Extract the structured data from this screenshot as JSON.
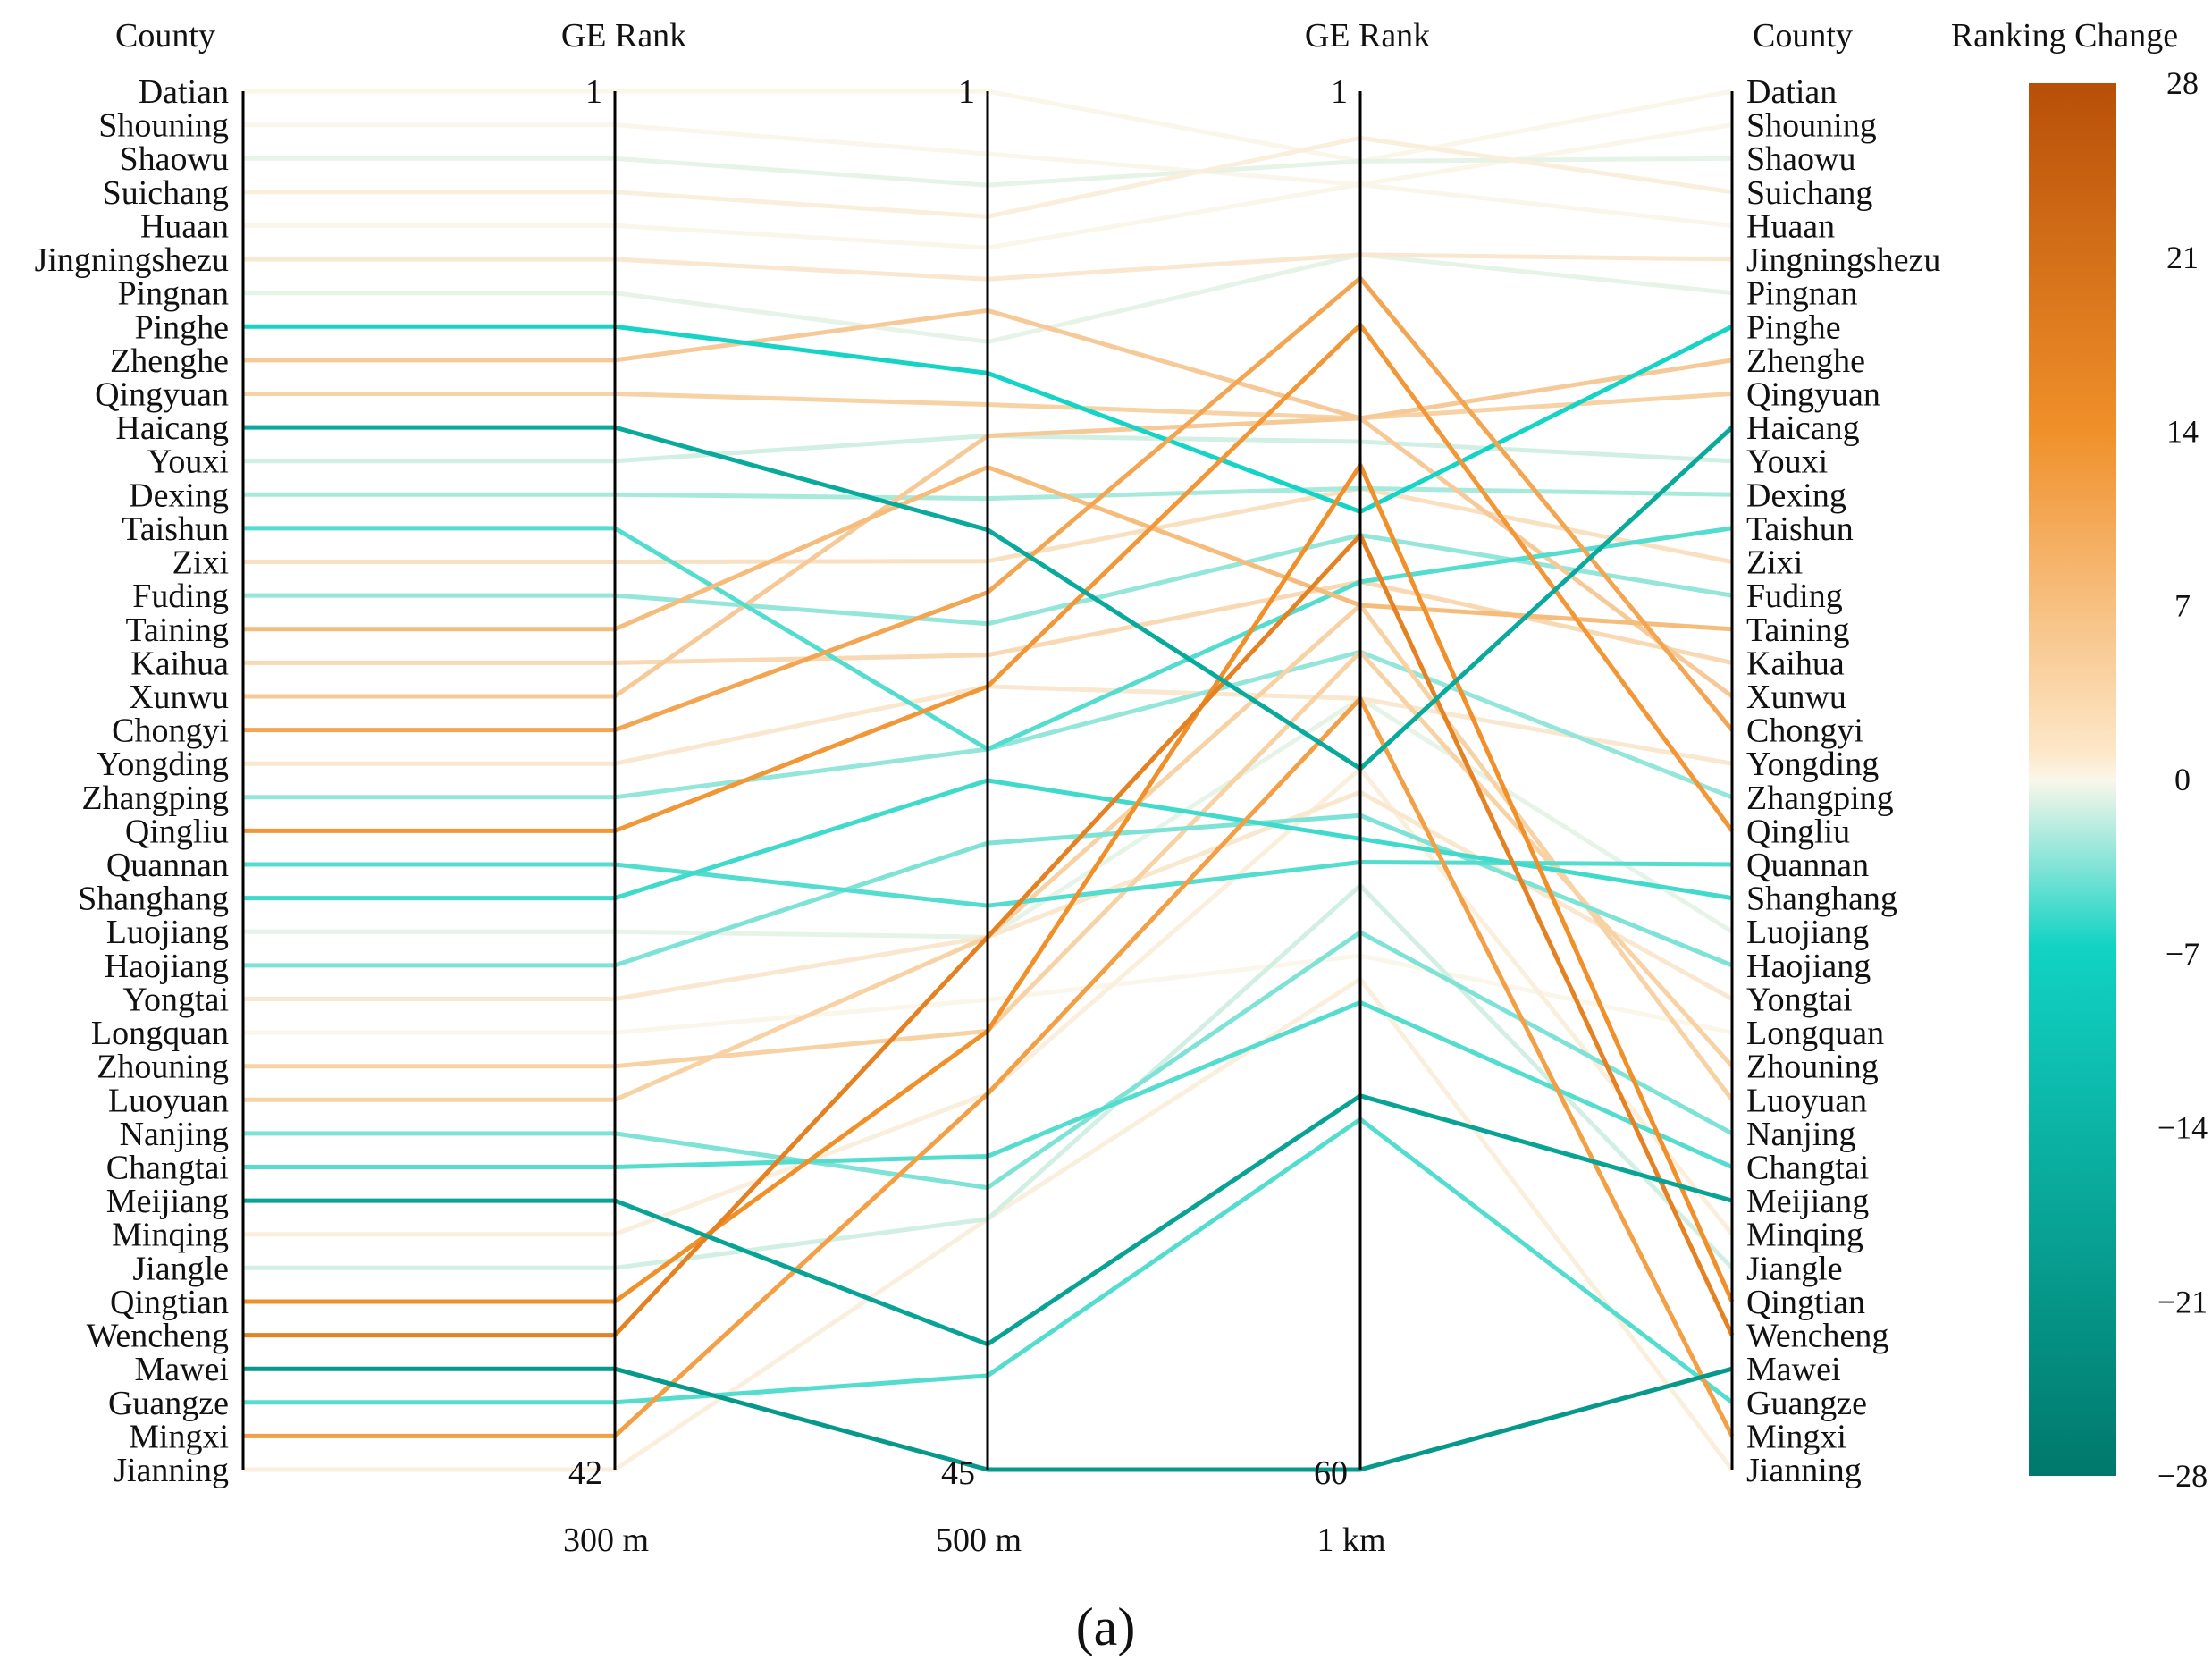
{
  "chart_data": {
    "type": "parallel-coordinates",
    "headers": {
      "county_left": "County",
      "rank_300": "GE Rank",
      "rank_1km": "GE Rank",
      "county_right": "County",
      "colorbar": "Ranking Change"
    },
    "axes": [
      {
        "label": "300 m",
        "top": "1",
        "bottom": "42",
        "max": 42
      },
      {
        "label": "500 m",
        "top": "1",
        "bottom": "45",
        "max": 45
      },
      {
        "label": "1 km",
        "top": "1",
        "bottom": "60",
        "max": 60
      }
    ],
    "colorbar": {
      "min": -28,
      "max": 28,
      "ticks": [
        {
          "value": 28,
          "label": "28"
        },
        {
          "value": 21,
          "label": "21"
        },
        {
          "value": 14,
          "label": "14"
        },
        {
          "value": 7,
          "label": "7"
        },
        {
          "value": 0,
          "label": "0"
        },
        {
          "value": -7,
          "label": "−7"
        },
        {
          "value": -14,
          "label": "−14"
        },
        {
          "value": -21,
          "label": "−21"
        },
        {
          "value": -28,
          "label": "−28"
        }
      ],
      "colors": {
        "negative_end": "#00786b",
        "negative_mid": "#11d3c4",
        "neutral": "#fbf6ea",
        "positive_mid": "#f0902a",
        "positive_end": "#b84f08"
      }
    },
    "counties": [
      {
        "name": "Datian",
        "ranks": [
          1,
          1,
          4
        ],
        "change": 0
      },
      {
        "name": "Shouning",
        "ranks": [
          2,
          3,
          5
        ],
        "change": 0
      },
      {
        "name": "Shaowu",
        "ranks": [
          3,
          4,
          4
        ],
        "change": -1
      },
      {
        "name": "Suichang",
        "ranks": [
          4,
          5,
          3
        ],
        "change": 1
      },
      {
        "name": "Huaan",
        "ranks": [
          5,
          6,
          5
        ],
        "change": 0
      },
      {
        "name": "Jingningshezu",
        "ranks": [
          6,
          7,
          8
        ],
        "change": 2
      },
      {
        "name": "Pingnan",
        "ranks": [
          7,
          9,
          8
        ],
        "change": -1
      },
      {
        "name": "Pinghe",
        "ranks": [
          8,
          10,
          19
        ],
        "change": -11
      },
      {
        "name": "Zhenghe",
        "ranks": [
          9,
          8,
          15
        ],
        "change": 6
      },
      {
        "name": "Qingyuan",
        "ranks": [
          10,
          11,
          15
        ],
        "change": 5
      },
      {
        "name": "Haicang",
        "ranks": [
          11,
          15,
          30
        ],
        "change": -19
      },
      {
        "name": "Youxi",
        "ranks": [
          12,
          12,
          16
        ],
        "change": -2
      },
      {
        "name": "Dexing",
        "ranks": [
          13,
          14,
          18
        ],
        "change": -4
      },
      {
        "name": "Taishun",
        "ranks": [
          14,
          22,
          22
        ],
        "change": -8
      },
      {
        "name": "Zixi",
        "ranks": [
          15,
          16,
          18
        ],
        "change": 3
      },
      {
        "name": "Fuding",
        "ranks": [
          16,
          18,
          20
        ],
        "change": -5
      },
      {
        "name": "Taining",
        "ranks": [
          17,
          13,
          23
        ],
        "change": 8
      },
      {
        "name": "Kaihua",
        "ranks": [
          18,
          19,
          22
        ],
        "change": 4
      },
      {
        "name": "Xunwu",
        "ranks": [
          19,
          12,
          15
        ],
        "change": 6
      },
      {
        "name": "Chongyi",
        "ranks": [
          20,
          17,
          9
        ],
        "change": 11
      },
      {
        "name": "Yongding",
        "ranks": [
          21,
          20,
          27
        ],
        "change": 2
      },
      {
        "name": "Zhangping",
        "ranks": [
          22,
          22,
          25
        ],
        "change": -5
      },
      {
        "name": "Qingliu",
        "ranks": [
          23,
          20,
          11
        ],
        "change": 13
      },
      {
        "name": "Quannan",
        "ranks": [
          24,
          27,
          34
        ],
        "change": -8
      },
      {
        "name": "Shanghang",
        "ranks": [
          25,
          23,
          33
        ],
        "change": -9
      },
      {
        "name": "Luojiang",
        "ranks": [
          26,
          28,
          27
        ],
        "change": -1
      },
      {
        "name": "Haojiang",
        "ranks": [
          27,
          25,
          32
        ],
        "change": -6
      },
      {
        "name": "Yongtai",
        "ranks": [
          28,
          28,
          31
        ],
        "change": 2
      },
      {
        "name": "Longquan",
        "ranks": [
          29,
          30,
          38
        ],
        "change": 0
      },
      {
        "name": "Zhouning",
        "ranks": [
          30,
          31,
          25
        ],
        "change": 5
      },
      {
        "name": "Luoyuan",
        "ranks": [
          31,
          28,
          23
        ],
        "change": 5
      },
      {
        "name": "Nanjing",
        "ranks": [
          32,
          36,
          37
        ],
        "change": -6
      },
      {
        "name": "Changtai",
        "ranks": [
          33,
          35,
          40
        ],
        "change": -8
      },
      {
        "name": "Meijiang",
        "ranks": [
          34,
          41,
          44
        ],
        "change": -20
      },
      {
        "name": "Minqing",
        "ranks": [
          35,
          33,
          30
        ],
        "change": 1
      },
      {
        "name": "Jiangle",
        "ranks": [
          36,
          37,
          35
        ],
        "change": -2
      },
      {
        "name": "Qingtian",
        "ranks": [
          37,
          31,
          17
        ],
        "change": 14
      },
      {
        "name": "Wencheng",
        "ranks": [
          38,
          28,
          20
        ],
        "change": 17
      },
      {
        "name": "Mawei",
        "ranks": [
          39,
          45,
          60
        ],
        "change": -22
      },
      {
        "name": "Guangze",
        "ranks": [
          40,
          42,
          45
        ],
        "change": -8
      },
      {
        "name": "Mingxi",
        "ranks": [
          41,
          33,
          27
        ],
        "change": 12
      },
      {
        "name": "Jianning",
        "ranks": [
          42,
          37,
          39
        ],
        "change": 1
      }
    ],
    "caption": "(a)"
  }
}
